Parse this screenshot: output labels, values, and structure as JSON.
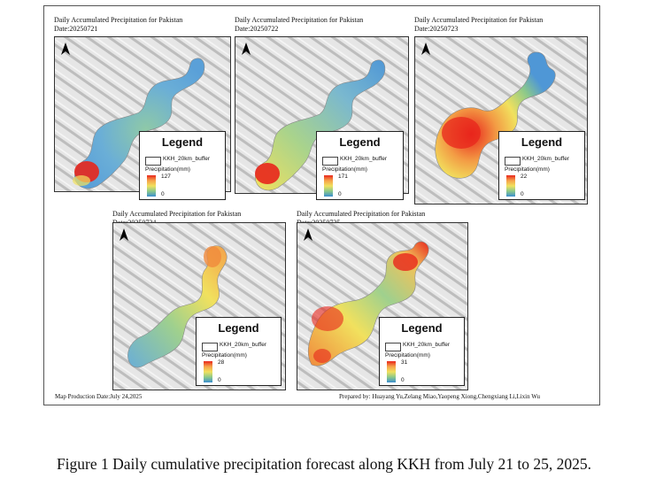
{
  "panels": [
    {
      "title": "Daily Accumulated Precipitation for Pakistan",
      "date": "Date:20250721",
      "legend": {
        "title": "Legend",
        "buffer_label": "KKH_20km_buffer",
        "precip_label": "Precipitation(mm)",
        "max": "127",
        "min": "0"
      }
    },
    {
      "title": "Daily Accumulated Precipitation for Pakistan",
      "date": "Date:20250722",
      "legend": {
        "title": "Legend",
        "buffer_label": "KKH_20km_buffer",
        "precip_label": "Precipitation(mm)",
        "max": "171",
        "min": "0"
      }
    },
    {
      "title": "Daily Accumulated Precipitation for Pakistan",
      "date": "Date:20250723",
      "legend": {
        "title": "Legend",
        "buffer_label": "KKH_20km_buffer",
        "precip_label": "Precipitation(mm)",
        "max": "22",
        "min": "0"
      }
    },
    {
      "title": "Daily Accumulated Precipitation for Pakistan",
      "date": "Date:20250724",
      "legend": {
        "title": "Legend",
        "buffer_label": "KKH_20km_buffer",
        "precip_label": "Precipitation(mm)",
        "max": "28",
        "min": "0"
      }
    },
    {
      "title": "Daily Accumulated Precipitation for Pakistan",
      "date": "Date:20250725",
      "legend": {
        "title": "Legend",
        "buffer_label": "KKH_20km_buffer",
        "precip_label": "Precipitation(mm)",
        "max": "31",
        "min": "0"
      }
    }
  ],
  "footer": {
    "production_date": "Map Production Date:July 24,2025",
    "credits": "Prepared by: Huayang Yu,Zelang Miao,Yaopeng Xiong,Chengxiang Li,Lixin Wu"
  },
  "caption": "Figure 1 Daily cumulative precipitation forecast along KKH from July 21 to 25, 2025.",
  "colors": {
    "ramp_high": "#e8261c",
    "ramp_mid": "#f1e15e",
    "ramp_low": "#3c8fd0"
  },
  "icons": {
    "north_arrow": "north-arrow-icon"
  }
}
